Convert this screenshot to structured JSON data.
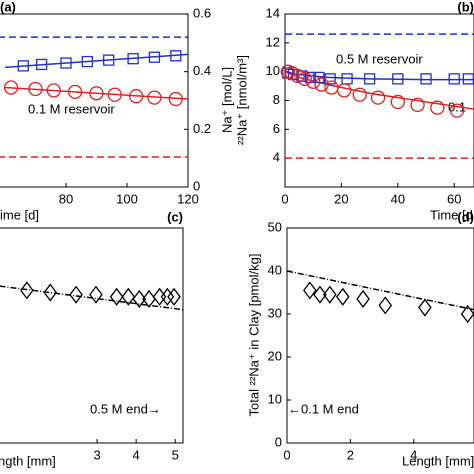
{
  "chart_data": [
    {
      "type": "line",
      "panel": "(a)",
      "xlabel": "ime [d]",
      "ylabel": "Na⁺ [mol/L]",
      "yaxis_side": "right",
      "xlim": [
        0,
        120
      ],
      "ylim": [
        0,
        0.6
      ],
      "xticks": [
        80,
        100,
        120
      ],
      "yticks": [
        0,
        0.2,
        0.4,
        0.6
      ],
      "annotations": [
        {
          "text": "0.1 M reservoir",
          "color": "#e02020"
        }
      ],
      "series": [
        {
          "color": "#1f2fd0",
          "line_style": "dashed",
          "x": [
            0,
            120
          ],
          "values": [
            0.52,
            0.52
          ]
        },
        {
          "color": "#e02020",
          "line_style": "dashed",
          "x": [
            0,
            120
          ],
          "values": [
            0.104,
            0.104
          ]
        },
        {
          "color": "#1f2fd0",
          "line_style": "solid",
          "x": [
            60,
            120
          ],
          "values": [
            0.415,
            0.46
          ]
        },
        {
          "color": "#e02020",
          "line_style": "solid",
          "x": [
            60,
            120
          ],
          "values": [
            0.345,
            0.305
          ]
        },
        {
          "color": "#1f2fd0",
          "marker": "square",
          "x": [
            66,
            72,
            80,
            87,
            94,
            102,
            109,
            116
          ],
          "values": [
            0.42,
            0.425,
            0.43,
            0.435,
            0.44,
            0.445,
            0.45,
            0.455
          ]
        },
        {
          "color": "#e02020",
          "marker": "circle",
          "x": [
            62,
            70,
            76,
            83,
            90,
            96,
            103,
            109,
            116
          ],
          "values": [
            0.345,
            0.34,
            0.335,
            0.33,
            0.325,
            0.32,
            0.315,
            0.31,
            0.305
          ]
        }
      ]
    },
    {
      "type": "line",
      "panel": "(b)",
      "xlabel": "Time [d",
      "ylabel": "²²Na⁺ [nmol/m³]",
      "yaxis_side": "left",
      "xlim": [
        0,
        67
      ],
      "ylim": [
        2,
        14
      ],
      "xticks": [
        0,
        20,
        40,
        60
      ],
      "yticks": [
        4,
        6,
        8,
        10,
        12,
        14
      ],
      "annotations": [
        {
          "text": "0.5 M reservoir",
          "color": "#1f2fd0"
        },
        {
          "text": "0.1",
          "color": "#e02020"
        }
      ],
      "series": [
        {
          "color": "#1f2fd0",
          "line_style": "dashed",
          "x": [
            0,
            67
          ],
          "values": [
            12.6,
            12.6
          ]
        },
        {
          "color": "#e02020",
          "line_style": "dashed",
          "x": [
            0,
            67
          ],
          "values": [
            4,
            4
          ]
        },
        {
          "color": "#1f2fd0",
          "line_style": "solid",
          "x": [
            0,
            5,
            15,
            30,
            50,
            67
          ],
          "values": [
            10,
            9.8,
            9.6,
            9.5,
            9.45,
            9.45
          ]
        },
        {
          "color": "#e02020",
          "line_style": "solid",
          "x": [
            0,
            5,
            15,
            30,
            50,
            67
          ],
          "values": [
            10,
            9.6,
            9.1,
            8.5,
            7.9,
            7.4
          ]
        },
        {
          "color": "#1f2fd0",
          "marker": "square",
          "x": [
            1,
            3,
            6,
            9,
            12,
            16,
            22,
            30,
            40,
            50,
            60,
            65
          ],
          "values": [
            9.9,
            9.8,
            9.7,
            9.6,
            9.6,
            9.5,
            9.5,
            9.5,
            9.5,
            9.5,
            9.5,
            9.5
          ]
        },
        {
          "color": "#e02020",
          "marker": "circle",
          "x": [
            1,
            2.5,
            4.5,
            7,
            10,
            13,
            16.5,
            21,
            26.5,
            33,
            40,
            47,
            54,
            61
          ],
          "values": [
            10,
            9.9,
            9.7,
            9.5,
            9.3,
            9.1,
            8.9,
            8.7,
            8.4,
            8.2,
            7.9,
            7.7,
            7.5,
            7.3
          ]
        }
      ]
    },
    {
      "type": "scatter",
      "panel": "(c)",
      "xlabel": "ngth [mm]",
      "yaxis_side": "left",
      "xlim": [
        0,
        5.2
      ],
      "ylim": [
        0,
        50
      ],
      "xticks": [
        3,
        4,
        5
      ],
      "yticks": [],
      "annotations": [
        {
          "text": "0.5 M end→",
          "color": "#1f2fd0"
        }
      ],
      "series": [
        {
          "color": "#000000",
          "line_style": "dashdot",
          "x": [
            0.5,
            5.2
          ],
          "values": [
            36.5,
            31
          ]
        },
        {
          "color": "#000000",
          "marker": "diamond",
          "x": [
            1.2,
            1.8,
            2.46,
            2.97,
            3.5,
            3.8,
            4.08,
            4.33,
            4.6,
            4.8,
            4.97
          ],
          "values": [
            35.5,
            35,
            34.5,
            34.5,
            34,
            34,
            33.5,
            33.5,
            34,
            34,
            34
          ]
        }
      ]
    },
    {
      "type": "scatter",
      "panel": "(d)",
      "xlabel": "Length [mm]",
      "ylabel": "Total ²²Na⁺ in Clay [pmol/kg]",
      "yaxis_side": "left",
      "xlim": [
        0,
        5.9
      ],
      "ylim": [
        0,
        50
      ],
      "xticks": [
        0,
        2,
        4
      ],
      "yticks": [
        0,
        10,
        20,
        30,
        40,
        50
      ],
      "annotations": [
        {
          "text": "←0.1 M end",
          "color": "#e02020"
        }
      ],
      "series": [
        {
          "color": "#000000",
          "line_style": "dashdot",
          "x": [
            0,
            5.9
          ],
          "values": [
            40,
            31
          ]
        },
        {
          "color": "#000000",
          "marker": "diamond",
          "x": [
            0.72,
            1.04,
            1.35,
            1.76,
            2.4,
            3.1,
            4.35,
            5.7
          ],
          "values": [
            35.5,
            34.5,
            34.5,
            34,
            33.5,
            32,
            31.5,
            30
          ]
        }
      ]
    }
  ]
}
